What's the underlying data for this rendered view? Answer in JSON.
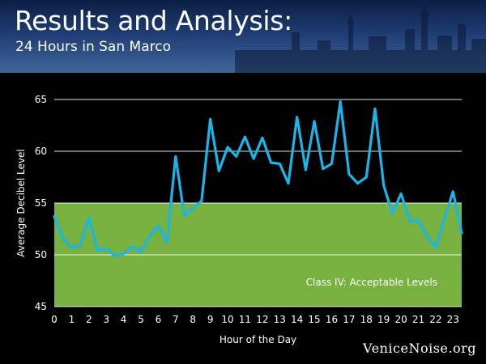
{
  "header": {
    "title": "Results and Analysis:",
    "subtitle": "24 Hours in San Marco"
  },
  "watermark": "VeniceNoise.org",
  "colors": {
    "line": "#19b6ea",
    "band": "#77b140",
    "plot_background": "#000000",
    "grid": "#ffffff",
    "text": "#ffffff"
  },
  "chart_data": {
    "type": "line",
    "title": "",
    "xlabel": "Hour of the Day",
    "ylabel": "Average Decibel Level",
    "xlim": [
      0,
      23.5
    ],
    "ylim": [
      45,
      65
    ],
    "x_ticks": [
      0,
      1,
      2,
      3,
      4,
      5,
      6,
      7,
      8,
      9,
      10,
      11,
      12,
      13,
      14,
      15,
      16,
      17,
      18,
      19,
      20,
      21,
      22,
      23
    ],
    "y_ticks": [
      45,
      50,
      55,
      60,
      65
    ],
    "grid": true,
    "band": {
      "from": 45,
      "to": 55,
      "label": "Class IV: Acceptable Levels"
    },
    "series": [
      {
        "x": [
          0,
          0.5,
          1,
          1.5,
          2,
          2.5,
          3,
          3.5,
          4,
          4.5,
          5,
          5.5,
          6,
          6.5,
          7,
          7.5,
          8,
          8.5,
          9,
          9.5,
          10,
          10.5,
          11,
          11.5,
          12,
          12.5,
          13,
          13.5,
          14,
          14.5,
          15,
          15.5,
          16,
          16.5,
          17,
          17.5,
          18,
          18.5,
          19,
          19.5,
          20,
          20.5,
          21,
          21.5,
          22,
          22.5,
          23,
          23.5
        ],
        "values": [
          53.7,
          51.6,
          50.7,
          50.9,
          53.6,
          50.4,
          50.6,
          49.9,
          50.1,
          50.8,
          50.3,
          51.8,
          52.8,
          51.2,
          59.5,
          53.8,
          54.5,
          55.2,
          63.1,
          58.1,
          60.4,
          59.5,
          61.4,
          59.3,
          61.3,
          58.9,
          58.8,
          56.9,
          63.3,
          58.2,
          62.9,
          58.3,
          58.8,
          64.8,
          57.8,
          56.9,
          57.5,
          64.1,
          56.7,
          54.0,
          55.9,
          53.3,
          53.3,
          51.8,
          50.7,
          53.4,
          56.1,
          52.1
        ]
      }
    ]
  }
}
